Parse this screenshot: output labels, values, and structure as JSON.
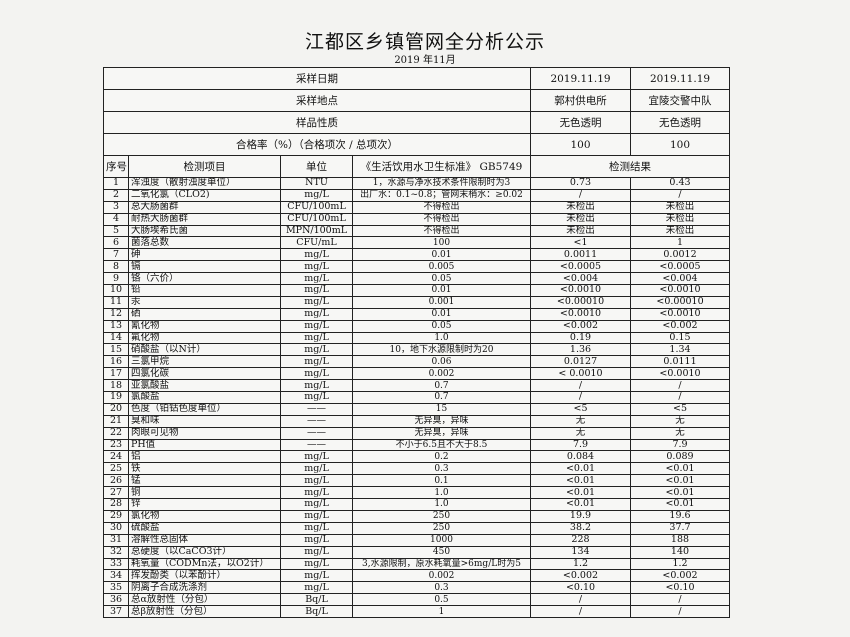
{
  "title": "江都区乡镇管网全分析公示",
  "subtitle": "2019 年11月",
  "header": {
    "sample_date_label": "采样日期",
    "sample_dates": [
      "2019.11.19",
      "2019.11.19"
    ],
    "sample_site_label": "采样地点",
    "sample_sites": [
      "郭村供电所",
      "宜陵交警中队"
    ],
    "sample_nature_label": "样品性质",
    "sample_natures": [
      "无色透明",
      "无色透明"
    ],
    "pass_rate_label": "合格率（%）（合格项次 / 总项次）",
    "pass_rates": [
      "100",
      "100"
    ]
  },
  "columns": {
    "seq": "序号",
    "item": "检测项目",
    "unit": "单位",
    "standard": "《生活饮用水卫生标准》 GB5749",
    "results": "检测结果"
  },
  "rows": [
    [
      "1",
      "浑浊度（散射浊度单位）",
      "NTU",
      "1，水源与净水技术条件限制时为3",
      "0.73",
      "0.43"
    ],
    [
      "2",
      "二氧化氯（CLO2)",
      "mg/L",
      "出厂水：0.1~0.8；管网末梢水：≥0.02",
      "/",
      "/"
    ],
    [
      "3",
      "总大肠菌群",
      "CFU/100mL",
      "不得检出",
      "未检出",
      "未检出"
    ],
    [
      "4",
      "耐热大肠菌群",
      "CFU/100mL",
      "不得检出",
      "未检出",
      "未检出"
    ],
    [
      "5",
      "大肠埃希氏菌",
      "MPN/100mL",
      "不得检出",
      "未检出",
      "未检出"
    ],
    [
      "6",
      "菌落总数",
      "CFU/mL",
      "100",
      "<1",
      "1"
    ],
    [
      "7",
      "砷",
      "mg/L",
      "0.01",
      "0.0011",
      "0.0012"
    ],
    [
      "8",
      "镉",
      "mg/L",
      "0.005",
      "<0.0005",
      "<0.0005"
    ],
    [
      "9",
      "铬（六价）",
      "mg/L",
      "0.05",
      "<0.004",
      "<0.004"
    ],
    [
      "10",
      "铅",
      "mg/L",
      "0.01",
      "<0.0010",
      "<0.0010"
    ],
    [
      "11",
      "汞",
      "mg/L",
      "0.001",
      "<0.00010",
      "<0.00010"
    ],
    [
      "12",
      "硒",
      "mg/L",
      "0.01",
      "<0.0010",
      "<0.0010"
    ],
    [
      "13",
      "氰化物",
      "mg/L",
      "0.05",
      "<0.002",
      "<0.002"
    ],
    [
      "14",
      "氟化物",
      "mg/L",
      "1.0",
      "0.19",
      "0.15"
    ],
    [
      "15",
      "硝酸盐（以N计）",
      "mg/L",
      "10，地下水源限制时为20",
      "1.36",
      "1.34"
    ],
    [
      "16",
      "三氯甲烷",
      "mg/L",
      "0.06",
      "0.0127",
      "0.0111"
    ],
    [
      "17",
      "四氯化碳",
      "mg/L",
      "0.002",
      "< 0.0010",
      "<0.0010"
    ],
    [
      "18",
      "亚氯酸盐",
      "mg/L",
      "0.7",
      "/",
      "/"
    ],
    [
      "19",
      "氯酸盐",
      "mg/L",
      "0.7",
      "/",
      "/"
    ],
    [
      "20",
      "色度（铂钴色度单位）",
      "——",
      "15",
      "<5",
      "<5"
    ],
    [
      "21",
      "臭和味",
      "——",
      "无异臭，异味",
      "无",
      "无"
    ],
    [
      "22",
      "肉眼可见物",
      "——",
      "无异臭，异味",
      "无",
      "无"
    ],
    [
      "23",
      "PH值",
      "——",
      "不小于6.5且不大于8.5",
      "7.9",
      "7.9"
    ],
    [
      "24",
      "铝",
      "mg/L",
      "0.2",
      "0.084",
      "0.089"
    ],
    [
      "25",
      "铁",
      "mg/L",
      "0.3",
      "<0.01",
      "<0.01"
    ],
    [
      "26",
      "锰",
      "mg/L",
      "0.1",
      "<0.01",
      "<0.01"
    ],
    [
      "27",
      "铜",
      "mg/L",
      "1.0",
      "<0.01",
      "<0.01"
    ],
    [
      "28",
      "锌",
      "mg/L",
      "1.0",
      "<0.01",
      "<0.01"
    ],
    [
      "29",
      "氯化物",
      "mg/L",
      "250",
      "19.9",
      "19.6"
    ],
    [
      "30",
      "硫酸盐",
      "mg/L",
      "250",
      "38.2",
      "37.7"
    ],
    [
      "31",
      "溶解性总固体",
      "mg/L",
      "1000",
      "228",
      "188"
    ],
    [
      "32",
      "总硬度（以CaCO3计）",
      "mg/L",
      "450",
      "134",
      "140"
    ],
    [
      "33",
      "耗氧量（CODMn法，以O2计）",
      "mg/L",
      "3,水源限制，原水耗氧量>6mg/L时为5",
      "1.2",
      "1.2"
    ],
    [
      "34",
      "挥发酚类（以苯酚计）",
      "mg/L",
      "0.002",
      "<0.002",
      "<0.002"
    ],
    [
      "35",
      "阴离子合成洗涤剂",
      "mg/L",
      "0.3",
      "<0.10",
      "<0.10"
    ],
    [
      "36",
      "总α放射性（分包）",
      "Bq/L",
      "0.5",
      "/",
      "/"
    ],
    [
      "37",
      "总β放射性（分包）",
      "Bq/L",
      "1",
      "/",
      "/"
    ]
  ]
}
